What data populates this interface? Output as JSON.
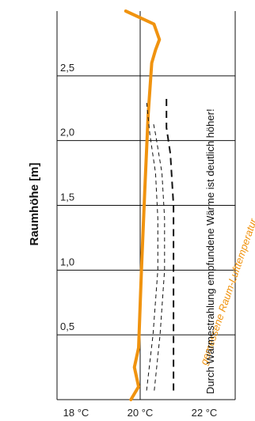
{
  "chart_data": {
    "type": "line",
    "xlabel": "",
    "ylabel": "Raumhöhe [m]",
    "xlim": [
      18,
      22
    ],
    "ylim": [
      0,
      3.0
    ],
    "x_ticks": [
      {
        "value": 18,
        "label": "18 °C"
      },
      {
        "value": 20,
        "label": "20 °C"
      },
      {
        "value": 22,
        "label": "22 °C"
      }
    ],
    "y_ticks": [
      {
        "value": 0.5,
        "label": "0,5"
      },
      {
        "value": 1.0,
        "label": "1,0"
      },
      {
        "value": 1.5,
        "label": "1,5"
      },
      {
        "value": 2.0,
        "label": "2,0"
      },
      {
        "value": 2.5,
        "label": "2,5"
      }
    ],
    "grid": true,
    "series": [
      {
        "style": "solid-orange",
        "color": "#f0930f",
        "points": [
          [
            19.71,
            0.0
          ],
          [
            19.95,
            0.1
          ],
          [
            19.82,
            0.25
          ],
          [
            19.95,
            0.4
          ],
          [
            20.04,
            1.0
          ],
          [
            20.14,
            1.6
          ],
          [
            20.25,
            2.2
          ],
          [
            20.36,
            2.6
          ],
          [
            20.48,
            2.7
          ],
          [
            20.6,
            2.78
          ],
          [
            20.43,
            2.9
          ],
          [
            19.55,
            3.0
          ]
        ]
      },
      {
        "style": "dashed-thin",
        "color": "#111111",
        "points": [
          [
            20.2,
            0.07
          ],
          [
            20.4,
            0.5
          ],
          [
            20.55,
            1.0
          ],
          [
            20.55,
            1.4
          ],
          [
            20.48,
            1.75
          ],
          [
            20.3,
            2.05
          ],
          [
            20.2,
            2.3
          ]
        ]
      },
      {
        "style": "dashed-thin",
        "color": "#111111",
        "points": [
          [
            20.44,
            0.07
          ],
          [
            20.62,
            0.5
          ],
          [
            20.76,
            1.0
          ],
          [
            20.76,
            1.4
          ],
          [
            20.68,
            1.75
          ],
          [
            20.48,
            2.05
          ],
          [
            20.4,
            2.15
          ]
        ]
      },
      {
        "style": "dashed-thick",
        "color": "#111111",
        "points": [
          [
            21.04,
            0.07
          ],
          [
            21.04,
            1.5
          ],
          [
            20.94,
            1.9
          ],
          [
            20.82,
            2.1
          ],
          [
            20.82,
            2.35
          ]
        ]
      }
    ],
    "annotations": [
      {
        "text": "gemessene Raum-Lufttemperatur",
        "color": "#f0930f"
      },
      {
        "text": "Durch Wärmestrahlung empfundene Wärme ist deutlich höher!",
        "color": "#111111"
      }
    ]
  }
}
